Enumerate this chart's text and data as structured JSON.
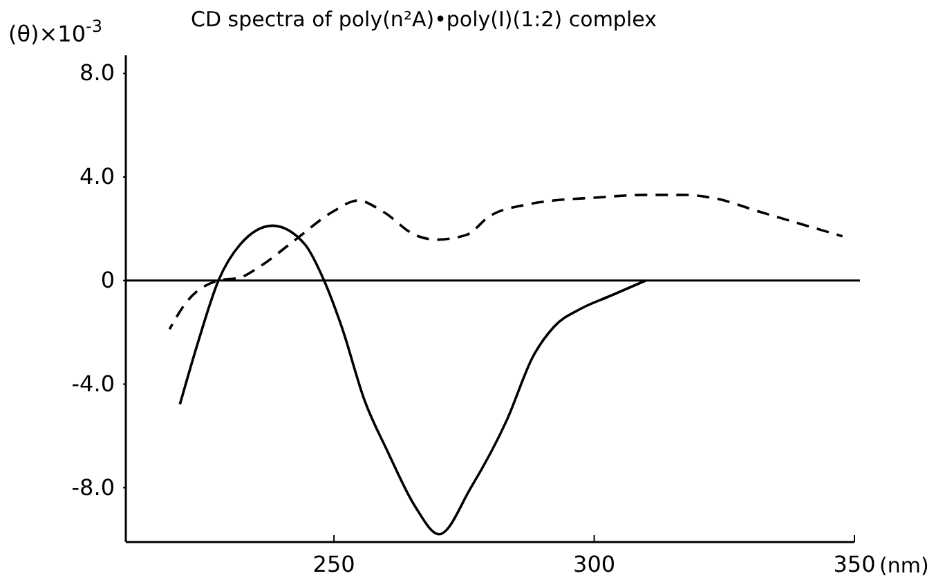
{
  "chart_data": {
    "type": "line",
    "title": "CD spectra of poly(n²A)•poly(I)(1:2) complex",
    "xlabel": "(nm)",
    "ylabel": "(θ)×10$^{-3}$",
    "xlim": [
      210,
      350
    ],
    "xticks": [
      250,
      300,
      350
    ],
    "ylim": [
      -10.1,
      8.7
    ],
    "yticks": [
      {
        "value": 8,
        "label": "8.0"
      },
      {
        "value": 4,
        "label": "4.0"
      },
      0,
      {
        "value": -4,
        "label": "-4.0"
      },
      {
        "value": -8,
        "label": "-8.0"
      }
    ],
    "grid": false,
    "marker": "none",
    "ref_lines": [
      {
        "axis": "y",
        "value": 0,
        "color": "#000000",
        "line_style": "solid"
      }
    ],
    "series": [
      {
        "color": "#000000",
        "line_style": "solid",
        "x": [
          220.4,
          224,
          227.8,
          232,
          238.2,
          244.4,
          248.1,
          251.5,
          255.9,
          260.3,
          265.6,
          270.2,
          276.3,
          283.3,
          288.2,
          292.2,
          297.5,
          303,
          309.9
        ],
        "values": [
          -4.78,
          -2.3,
          0,
          1.4,
          2.12,
          1.4,
          0,
          -1.8,
          -4.64,
          -6.6,
          -8.73,
          -9.8,
          -8.0,
          -5.35,
          -2.95,
          -1.8,
          -1.08,
          -0.6,
          0
        ]
      },
      {
        "color": "#000000",
        "line_style": "dashed",
        "x": [
          218.4,
          221.4,
          227.8,
          232,
          235.6,
          242.6,
          249.7,
          254.6,
          259.5,
          265.6,
          269.6,
          275.4,
          280,
          286.9,
          292.2,
          300,
          309.9,
          316.9,
          323.1,
          331.9,
          340.8,
          347.7
        ],
        "values": [
          -1.88,
          -0.9,
          0,
          0.12,
          0.52,
          1.58,
          2.65,
          3.09,
          2.65,
          1.76,
          1.58,
          1.76,
          2.5,
          2.93,
          3.09,
          3.2,
          3.31,
          3.31,
          3.18,
          2.65,
          2.12,
          1.71
        ]
      }
    ]
  }
}
